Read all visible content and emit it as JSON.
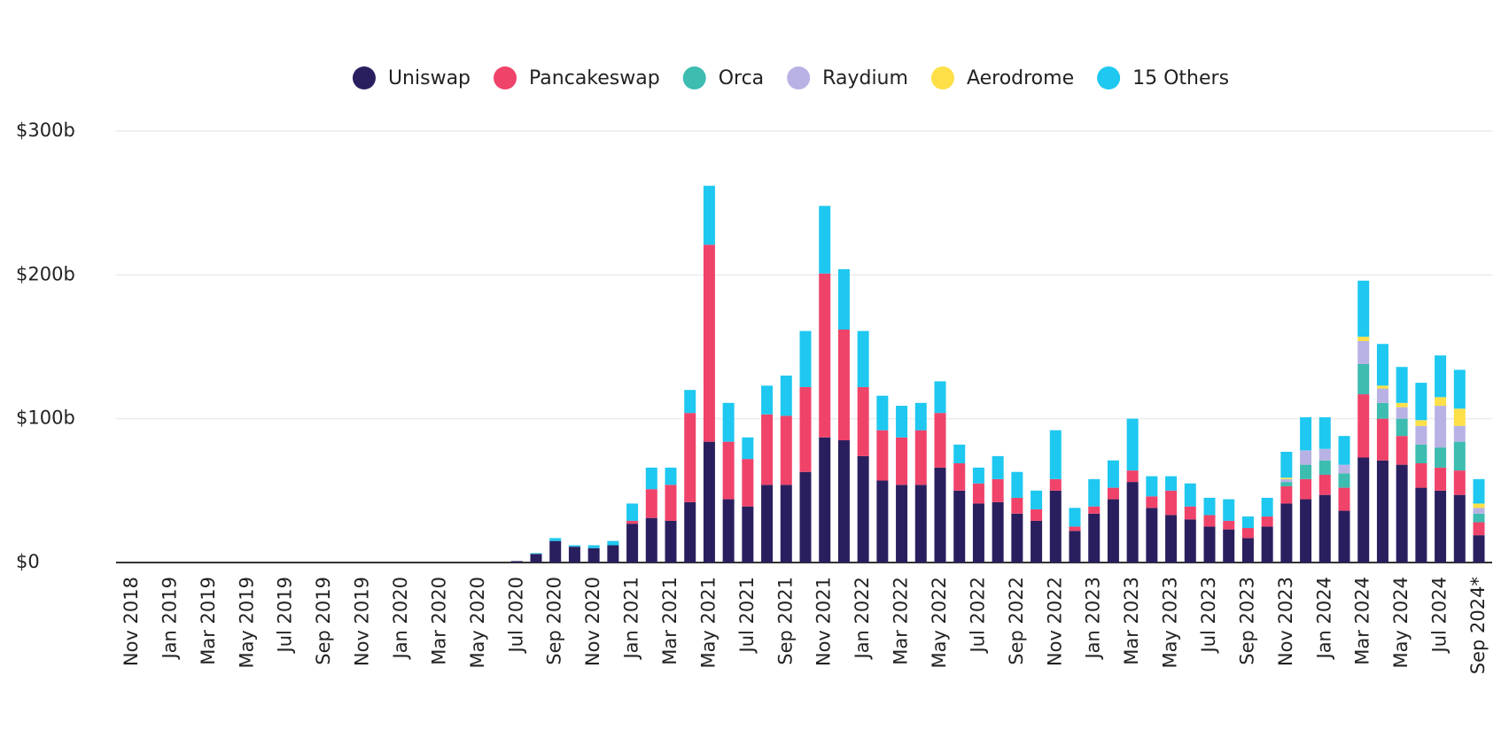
{
  "chart_data": {
    "type": "bar",
    "stacked": true,
    "categories": [
      "Nov 2018",
      null,
      "Jan 2019",
      null,
      "Mar 2019",
      null,
      "May 2019",
      null,
      "Jul 2019",
      null,
      "Sep 2019",
      null,
      "Nov 2019",
      null,
      "Jan 2020",
      null,
      "Mar 2020",
      null,
      "May 2020",
      null,
      "Jul 2020",
      null,
      "Sep 2020",
      null,
      "Nov 2020",
      null,
      "Jan 2021",
      null,
      "Mar 2021",
      null,
      "May 2021",
      null,
      "Jul 2021",
      null,
      "Sep 2021",
      null,
      "Nov 2021",
      null,
      "Jan 2022",
      null,
      "Mar 2022",
      null,
      "May 2022",
      null,
      "Jul 2022",
      null,
      "Sep 2022",
      null,
      "Nov 2022",
      null,
      "Jan 2023",
      null,
      "Mar 2023",
      null,
      "May 2023",
      null,
      "Jul 2023",
      null,
      "Sep 2023",
      null,
      "Nov 2023",
      null,
      "Jan 2024",
      null,
      "Mar 2024",
      null,
      "May 2024",
      null,
      "Jul 2024",
      null,
      "Sep 2024*"
    ],
    "series": [
      {
        "name": "Uniswap",
        "color": "#2a1f5e",
        "values": [
          0,
          0,
          0,
          0,
          0,
          0,
          0,
          0,
          0,
          0,
          0,
          0,
          0,
          0,
          0,
          0,
          0,
          0,
          0,
          0,
          1,
          6,
          15,
          11,
          10,
          12,
          27,
          31,
          29,
          42,
          84,
          44,
          39,
          54,
          54,
          63,
          87,
          85,
          74,
          57,
          54,
          54,
          66,
          50,
          41,
          42,
          34,
          29,
          50,
          22,
          34,
          44,
          56,
          38,
          33,
          30,
          25,
          23,
          17,
          25,
          41,
          44,
          47,
          36,
          73,
          71,
          68,
          52,
          50,
          47,
          19
        ]
      },
      {
        "name": "Pancakeswap",
        "color": "#f0436a",
        "values": [
          0,
          0,
          0,
          0,
          0,
          0,
          0,
          0,
          0,
          0,
          0,
          0,
          0,
          0,
          0,
          0,
          0,
          0,
          0,
          0,
          0,
          0,
          0,
          0,
          0,
          0,
          2,
          20,
          25,
          62,
          137,
          40,
          33,
          49,
          48,
          59,
          114,
          77,
          48,
          35,
          33,
          38,
          38,
          19,
          14,
          16,
          11,
          8,
          8,
          3,
          5,
          8,
          8,
          8,
          17,
          9,
          8,
          6,
          7,
          7,
          12,
          14,
          14,
          16,
          44,
          29,
          20,
          17,
          16,
          17,
          9
        ]
      },
      {
        "name": "Orca",
        "color": "#3dbcb0",
        "values": [
          0,
          0,
          0,
          0,
          0,
          0,
          0,
          0,
          0,
          0,
          0,
          0,
          0,
          0,
          0,
          0,
          0,
          0,
          0,
          0,
          0,
          0,
          0,
          0,
          0,
          0,
          0,
          0,
          0,
          0,
          0,
          0,
          0,
          0,
          0,
          0,
          0,
          0,
          0,
          0,
          0,
          0,
          0,
          0,
          0,
          0,
          0,
          0,
          0,
          0,
          0,
          0,
          0,
          0,
          0,
          0,
          0,
          0,
          0,
          0,
          3,
          10,
          10,
          10,
          21,
          11,
          12,
          13,
          14,
          20,
          6
        ]
      },
      {
        "name": "Raydium",
        "color": "#b8b2e4",
        "values": [
          0,
          0,
          0,
          0,
          0,
          0,
          0,
          0,
          0,
          0,
          0,
          0,
          0,
          0,
          0,
          0,
          0,
          0,
          0,
          0,
          0,
          0,
          0,
          0,
          0,
          0,
          0,
          0,
          0,
          0,
          0,
          0,
          0,
          0,
          0,
          0,
          0,
          0,
          0,
          0,
          0,
          0,
          0,
          0,
          0,
          0,
          0,
          0,
          0,
          0,
          0,
          0,
          0,
          0,
          0,
          0,
          0,
          0,
          0,
          0,
          2,
          10,
          8,
          6,
          16,
          10,
          8,
          13,
          29,
          11,
          4
        ]
      },
      {
        "name": "Aerodrome",
        "color": "#fde047",
        "values": [
          0,
          0,
          0,
          0,
          0,
          0,
          0,
          0,
          0,
          0,
          0,
          0,
          0,
          0,
          0,
          0,
          0,
          0,
          0,
          0,
          0,
          0,
          0,
          0,
          0,
          0,
          0,
          0,
          0,
          0,
          0,
          0,
          0,
          0,
          0,
          0,
          0,
          0,
          0,
          0,
          0,
          0,
          0,
          0,
          0,
          0,
          0,
          0,
          0,
          0,
          0,
          0,
          0,
          0,
          0,
          0,
          0,
          0,
          0,
          0,
          1,
          0,
          0,
          0,
          3,
          2,
          3,
          4,
          6,
          12,
          3
        ]
      },
      {
        "name": "15 Others",
        "color": "#1ec8f0",
        "values": [
          0,
          0,
          0,
          0,
          0,
          0,
          0,
          0,
          0,
          0,
          0,
          0,
          0,
          0,
          0,
          0,
          0,
          0,
          0,
          0,
          0,
          0.5,
          2,
          1,
          2,
          3,
          12,
          15,
          12,
          16,
          41,
          27,
          15,
          20,
          28,
          39,
          47,
          42,
          39,
          24,
          22,
          19,
          22,
          13,
          11,
          16,
          18,
          13,
          34,
          13,
          19,
          19,
          36,
          14,
          10,
          16,
          12,
          15,
          8,
          13,
          18,
          23,
          22,
          20,
          39,
          29,
          25,
          26,
          29,
          27,
          17
        ]
      }
    ],
    "ylim": [
      0,
      300
    ],
    "yticks": [
      {
        "value": 0,
        "label": "$0"
      },
      {
        "value": 100,
        "label": "$100b"
      },
      {
        "value": 200,
        "label": "$200b"
      },
      {
        "value": 300,
        "label": "$300b"
      }
    ],
    "grid": true,
    "legend": "top"
  }
}
